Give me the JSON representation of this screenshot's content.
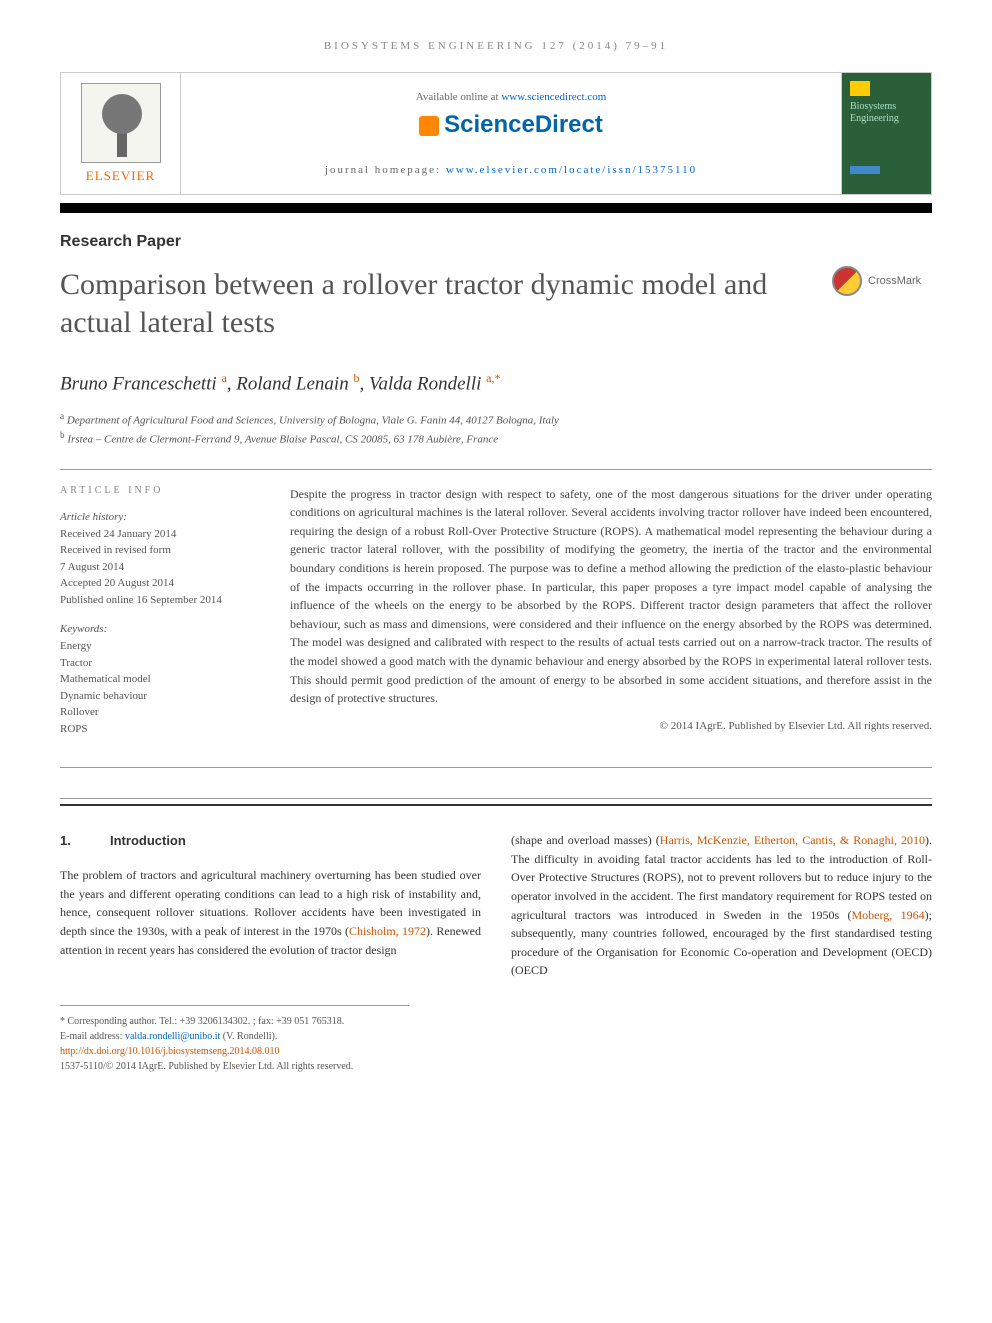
{
  "journal_ref": "BIOSYSTEMS ENGINEERING 127 (2014) 79–91",
  "header": {
    "publisher_name": "ELSEVIER",
    "available_text": "Available online at ",
    "available_link": "www.sciencedirect.com",
    "platform": "ScienceDirect",
    "homepage_label": "journal homepage: ",
    "homepage_link": "www.elsevier.com/locate/issn/15375110",
    "cover_title": "Biosystems Engineering"
  },
  "article": {
    "type": "Research Paper",
    "title": "Comparison between a rollover tractor dynamic model and actual lateral tests",
    "crossmark_label": "CrossMark",
    "authors_html": "Bruno Franceschetti <sup class='sup-link'>a</sup>, Roland Lenain <sup class='sup-link'>b</sup>, Valda Rondelli <sup class='sup-link'>a,</sup><sup>*</sup>",
    "affiliations": [
      "a Department of Agricultural Food and Sciences, University of Bologna, Viale G. Fanin 44, 40127 Bologna, Italy",
      "b Irstea – Centre de Clermont-Ferrand 9, Avenue Blaise Pascal, CS 20085, 63 178 Aubière, France"
    ]
  },
  "info": {
    "heading": "ARTICLE INFO",
    "history_label": "Article history:",
    "history": [
      "Received 24 January 2014",
      "Received in revised form",
      "7 August 2014",
      "Accepted 20 August 2014",
      "Published online 16 September 2014"
    ],
    "keywords_label": "Keywords:",
    "keywords": [
      "Energy",
      "Tractor",
      "Mathematical model",
      "Dynamic behaviour",
      "Rollover",
      "ROPS"
    ]
  },
  "abstract": "Despite the progress in tractor design with respect to safety, one of the most dangerous situations for the driver under operating conditions on agricultural machines is the lateral rollover. Several accidents involving tractor rollover have indeed been encountered, requiring the design of a robust Roll-Over Protective Structure (ROPS). A mathematical model representing the behaviour during a generic tractor lateral rollover, with the possibility of modifying the geometry, the inertia of the tractor and the environmental boundary conditions is herein proposed. The purpose was to define a method allowing the prediction of the elasto-plastic behaviour of the impacts occurring in the rollover phase. In particular, this paper proposes a tyre impact model capable of analysing the influence of the wheels on the energy to be absorbed by the ROPS. Different tractor design parameters that affect the rollover behaviour, such as mass and dimensions, were considered and their influence on the energy absorbed by the ROPS was determined. The model was designed and calibrated with respect to the results of actual tests carried out on a narrow-track tractor. The results of the model showed a good match with the dynamic behaviour and energy absorbed by the ROPS in experimental lateral rollover tests. This should permit good prediction of the amount of energy to be absorbed in some accident situations, and therefore assist in the design of protective structures.",
  "copyright": "© 2014 IAgrE. Published by Elsevier Ltd. All rights reserved.",
  "section1": {
    "number": "1.",
    "title": "Introduction"
  },
  "body": {
    "col1_p1": "The problem of tractors and agricultural machinery overturning has been studied over the years and different operating conditions can lead to a high risk of instability and, hence, consequent rollover situations. Rollover accidents have been investigated in depth since the 1930s, with a peak of interest in the 1970s (",
    "col1_cite1": "Chisholm, 1972",
    "col1_p2": "). Renewed attention in recent years has considered the evolution of tractor design",
    "col2_p1": "(shape and overload masses) (",
    "col2_cite1": "Harris, McKenzie, Etherton, Cantis, & Ronaghi, 2010",
    "col2_p2": "). The difficulty in avoiding fatal tractor accidents has led to the introduction of Roll-Over Protective Structures (ROPS), not to prevent rollovers but to reduce injury to the operator involved in the accident. The first mandatory requirement for ROPS tested on agricultural tractors was introduced in Sweden in the 1950s (",
    "col2_cite2": "Moberg, 1964",
    "col2_p3": "); subsequently, many countries followed, encouraged by the first standardised testing procedure of the Organisation for Economic Co-operation and Development (OECD) (OECD"
  },
  "footer": {
    "corresponding": "* Corresponding author. Tel.: +39 3206134302. ; fax: +39 051 765318.",
    "email_label": "E-mail address: ",
    "email": "valda.rondelli@unibo.it",
    "email_suffix": " (V. Rondelli).",
    "doi": "http://dx.doi.org/10.1016/j.biosystemseng.2014.08.010",
    "issn_copyright": "1537-5110/© 2014 IAgrE. Published by Elsevier Ltd. All rights reserved."
  }
}
